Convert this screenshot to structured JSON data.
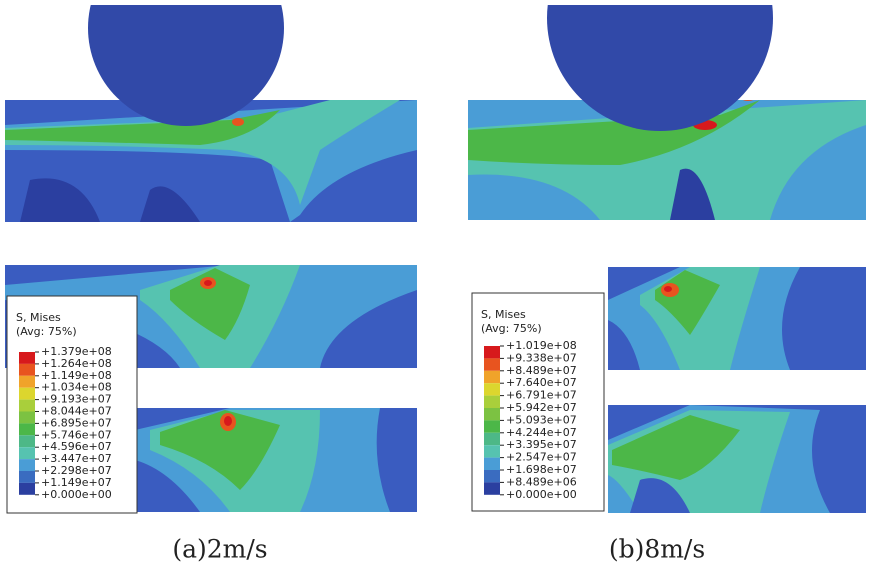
{
  "panels": [
    {
      "caption": "(a)2m/s",
      "legend": {
        "title": "S, Mises",
        "subtitle": "(Avg: 75%)",
        "labels": [
          "+1.379e+08",
          "+1.264e+08",
          "+1.149e+08",
          "+1.034e+08",
          "+9.193e+07",
          "+8.044e+07",
          "+6.895e+07",
          "+5.746e+07",
          "+4.596e+07",
          "+3.447e+07",
          "+2.298e+07",
          "+1.149e+07",
          "+0.000e+00"
        ]
      }
    },
    {
      "caption": "(b)8m/s",
      "legend": {
        "title": "S, Mises",
        "subtitle": "(Avg: 75%)",
        "labels": [
          "+1.019e+08",
          "+9.338e+07",
          "+8.489e+07",
          "+7.640e+07",
          "+6.791e+07",
          "+5.942e+07",
          "+5.093e+07",
          "+4.244e+07",
          "+3.395e+07",
          "+2.547e+07",
          "+1.698e+07",
          "+8.489e+06",
          "+0.000e+00"
        ]
      }
    }
  ]
}
